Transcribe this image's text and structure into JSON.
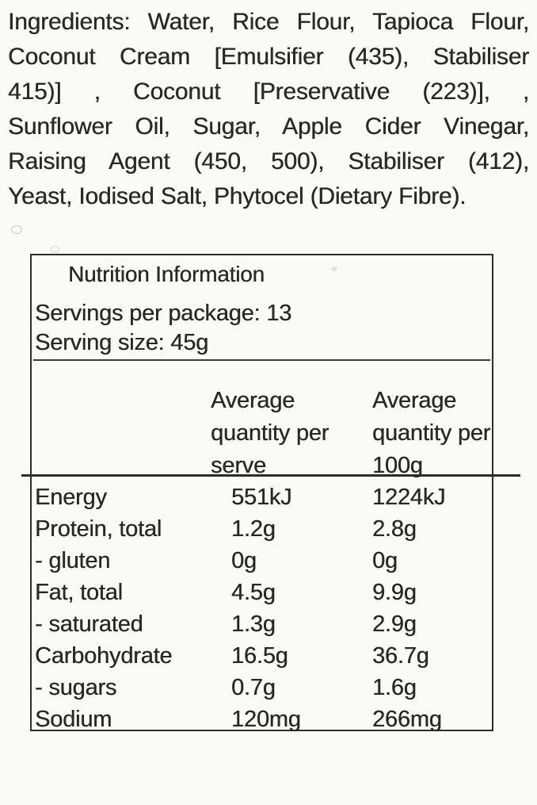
{
  "colors": {
    "paper": "#fafaf8",
    "ink": "#262a26",
    "border": "#2d2f2d"
  },
  "ingredients": {
    "lines": [
      "Ingredients: Water, Rice Flour, Tapioca Flour,",
      "Coconut Cream [Emulsifier (435), Stabiliser",
      "415)] , Coconut [Preservative (223)], ,",
      "Sunflower Oil, Sugar, Apple Cider Vinegar,",
      "Raising Agent (450, 500), Stabiliser (412),",
      "Yeast, Iodised Salt, Phytocel (Dietary Fibre)."
    ]
  },
  "nutrition_panel": {
    "title": "Nutrition Information",
    "servings_line": "Servings per package: 13",
    "serving_size_line": "Serving size: 45g",
    "columns": {
      "per_serve": "Average quantity per serve",
      "per_100g": "Average quantity per 100g"
    },
    "rows": [
      {
        "nutrient": "Energy",
        "per_serve": "551kJ",
        "per_100g": "1224kJ"
      },
      {
        "nutrient": "Protein, total",
        "per_serve": "1.2g",
        "per_100g": "2.8g"
      },
      {
        "nutrient": "- gluten",
        "per_serve": "0g",
        "per_100g": "0g"
      },
      {
        "nutrient": "Fat, total",
        "per_serve": "4.5g",
        "per_100g": "9.9g"
      },
      {
        "nutrient": "- saturated",
        "per_serve": "1.3g",
        "per_100g": "2.9g"
      },
      {
        "nutrient": "Carbohydrate",
        "per_serve": "16.5g",
        "per_100g": "36.7g"
      },
      {
        "nutrient": "- sugars",
        "per_serve": "0.7g",
        "per_100g": "1.6g"
      },
      {
        "nutrient": "Sodium",
        "per_serve": "120mg",
        "per_100g": "266mg"
      }
    ]
  }
}
